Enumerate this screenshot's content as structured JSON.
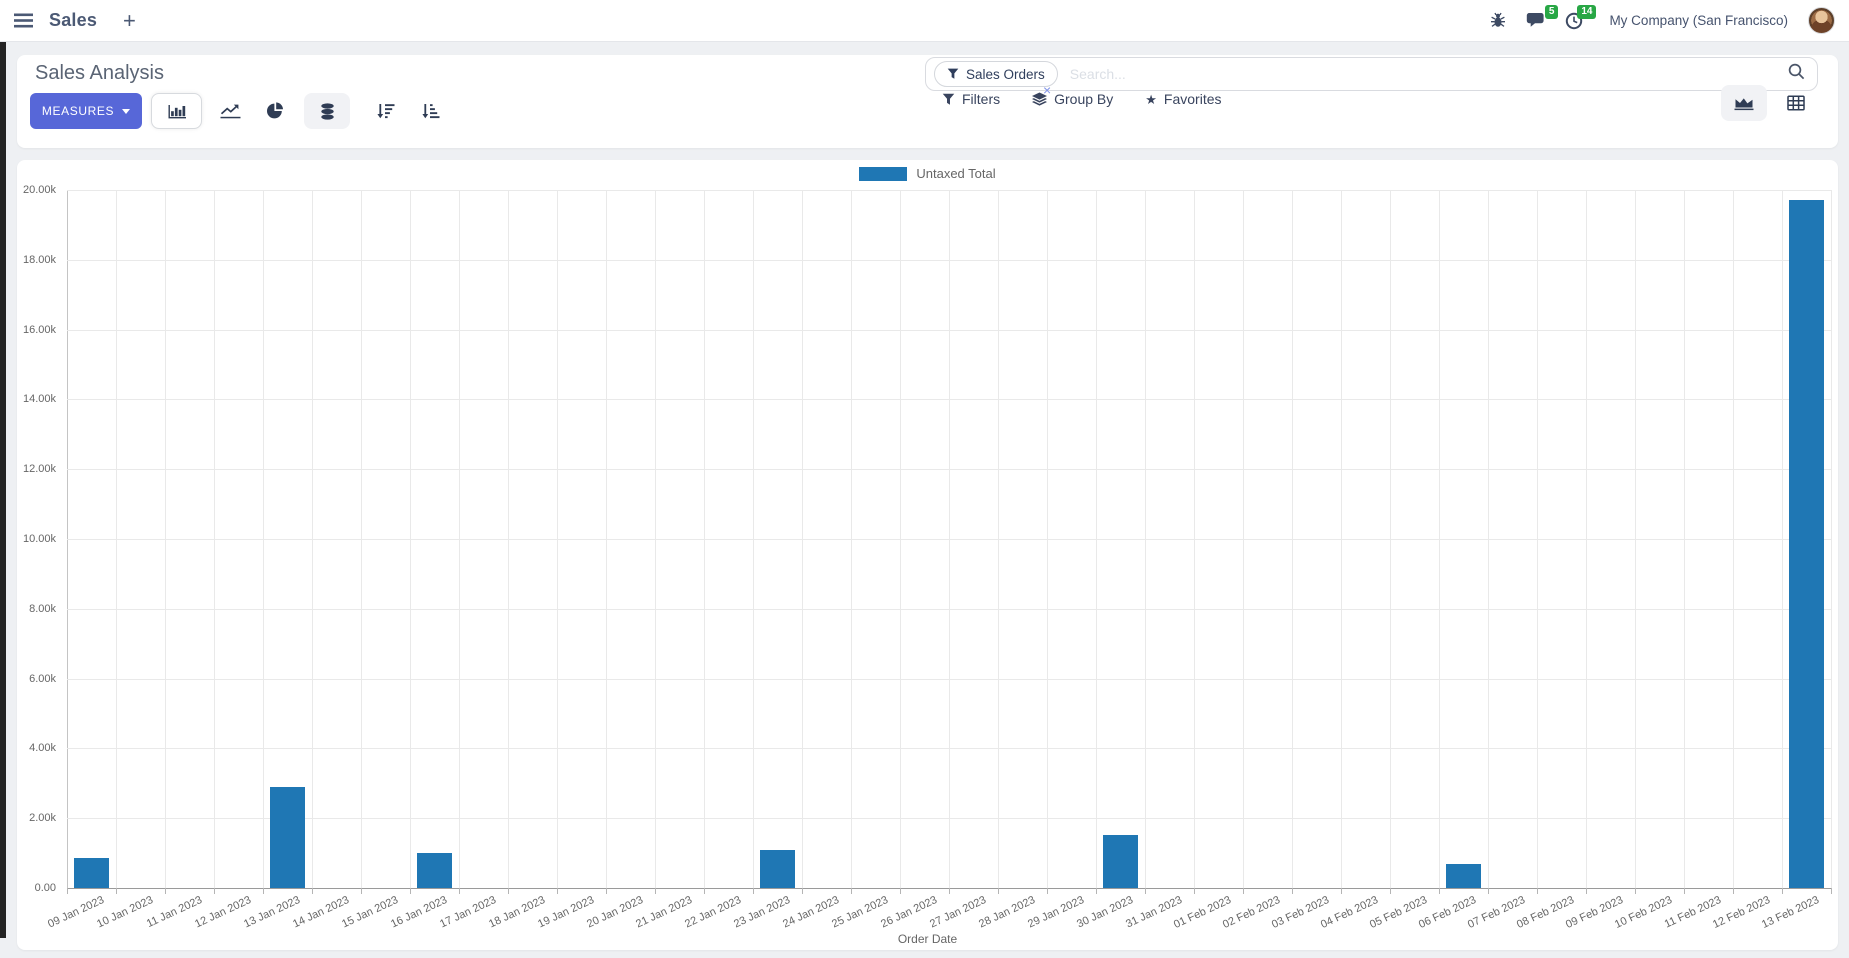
{
  "navbar": {
    "app": "Sales",
    "company": "My Company (San Francisco)",
    "badges": {
      "messages": "5",
      "activities": "14"
    }
  },
  "icons": {
    "plus": "+",
    "star": "★"
  },
  "control_panel": {
    "title": "Sales Analysis",
    "measures_label": "MEASURES",
    "filters_label": "Filters",
    "group_by_label": "Group By",
    "favorites_label": "Favorites"
  },
  "search": {
    "facet_label": "Sales Orders",
    "facet_remove": "×",
    "placeholder": "Search..."
  },
  "colors": {
    "accent": "#5767d8",
    "bar": "#1f77b4",
    "badge_green": "#28a745"
  },
  "chart_data": {
    "type": "bar",
    "title": "",
    "xlabel": "Order Date",
    "ylabel": "",
    "ylim": [
      0,
      20000
    ],
    "grid": true,
    "legend_position": "top-center",
    "yticks": [
      "0.00",
      "2.00k",
      "4.00k",
      "6.00k",
      "8.00k",
      "10.00k",
      "12.00k",
      "14.00k",
      "16.00k",
      "18.00k",
      "20.00k"
    ],
    "categories": [
      "09 Jan 2023",
      "10 Jan 2023",
      "11 Jan 2023",
      "12 Jan 2023",
      "13 Jan 2023",
      "14 Jan 2023",
      "15 Jan 2023",
      "16 Jan 2023",
      "17 Jan 2023",
      "18 Jan 2023",
      "19 Jan 2023",
      "20 Jan 2023",
      "21 Jan 2023",
      "22 Jan 2023",
      "23 Jan 2023",
      "24 Jan 2023",
      "25 Jan 2023",
      "26 Jan 2023",
      "27 Jan 2023",
      "28 Jan 2023",
      "29 Jan 2023",
      "30 Jan 2023",
      "31 Jan 2023",
      "01 Feb 2023",
      "02 Feb 2023",
      "03 Feb 2023",
      "04 Feb 2023",
      "05 Feb 2023",
      "06 Feb 2023",
      "07 Feb 2023",
      "08 Feb 2023",
      "09 Feb 2023",
      "10 Feb 2023",
      "11 Feb 2023",
      "12 Feb 2023",
      "13 Feb 2023"
    ],
    "series": [
      {
        "name": "Untaxed Total",
        "color": "#1f77b4",
        "values": [
          850,
          0,
          0,
          0,
          2900,
          0,
          0,
          1000,
          0,
          0,
          0,
          0,
          0,
          0,
          1100,
          0,
          0,
          0,
          0,
          0,
          0,
          1530,
          0,
          0,
          0,
          0,
          0,
          0,
          700,
          0,
          0,
          0,
          0,
          0,
          0,
          19700
        ]
      }
    ]
  }
}
